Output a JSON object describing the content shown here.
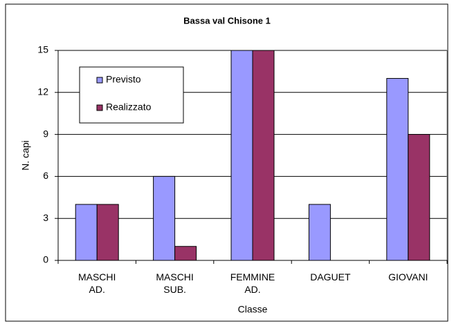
{
  "chart_data": {
    "type": "bar",
    "title": "Bassa val Chisone 1",
    "x_label": "Classe",
    "y_label": "N. capi",
    "categories": [
      "MASCHI AD.",
      "MASCHI SUB.",
      "FEMMINE AD.",
      "DAGUET",
      "GIOVANI"
    ],
    "series": [
      {
        "name": "Previsto",
        "color": "#9999ff",
        "values": [
          4,
          6,
          15,
          4,
          13
        ]
      },
      {
        "name": "Realizzato",
        "color": "#993366",
        "values": [
          4,
          1,
          15,
          0,
          9
        ]
      }
    ],
    "ylim": [
      0,
      15
    ],
    "yticks": [
      0,
      3,
      6,
      9,
      12,
      15
    ],
    "grid": true,
    "legend": "upper left"
  }
}
